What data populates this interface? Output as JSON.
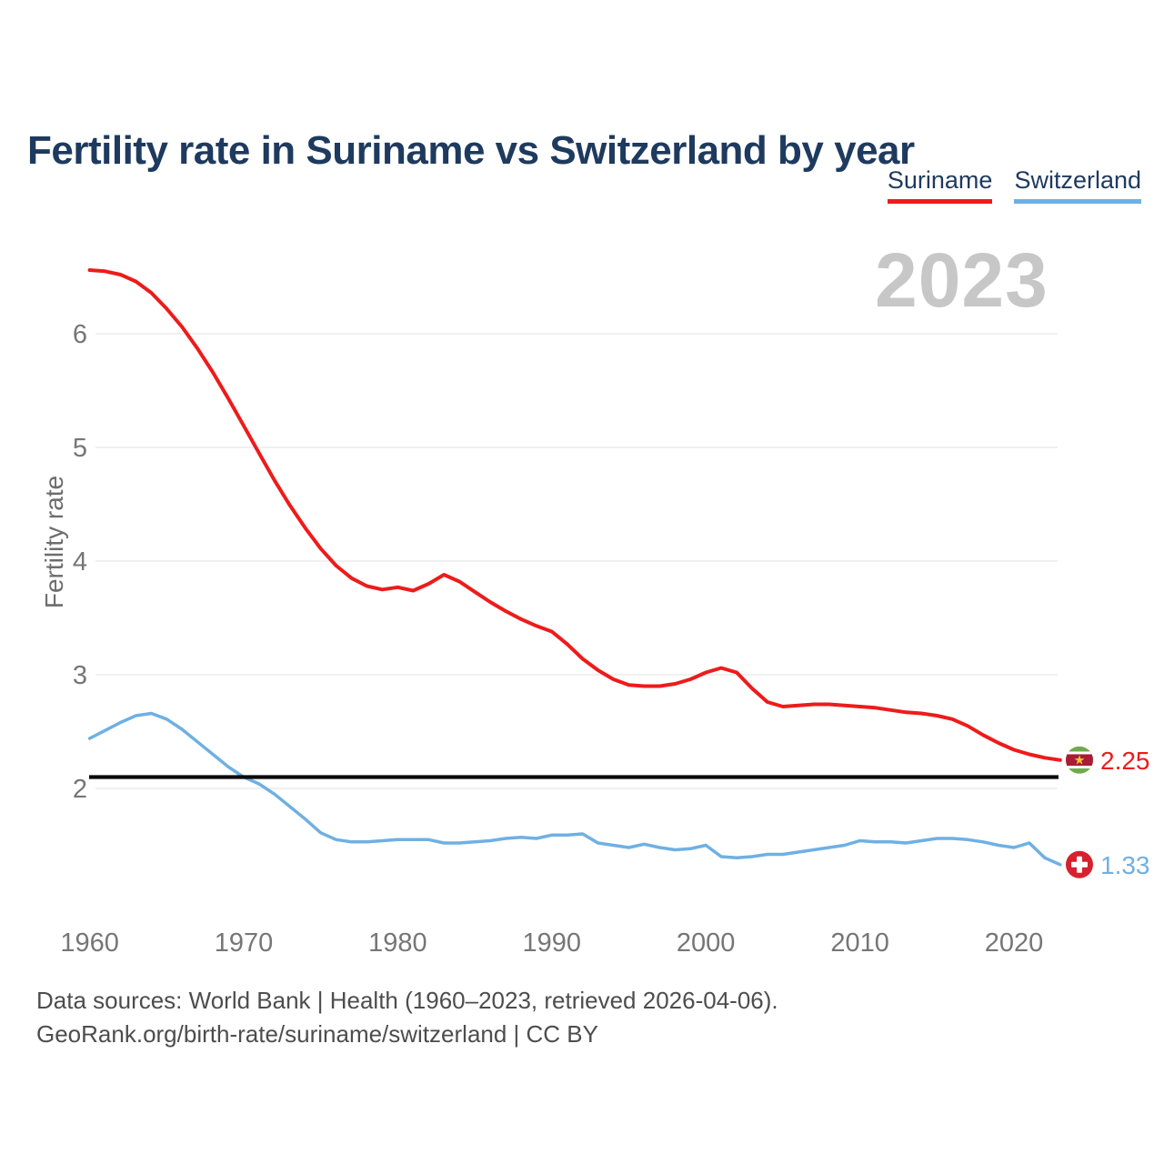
{
  "header": {
    "title": "Fertility rate in Suriname vs Switzerland by year"
  },
  "legend": {
    "items": [
      {
        "label": "Suriname",
        "color": "#ee1b1b"
      },
      {
        "label": "Switzerland",
        "color": "#6fb0e3"
      }
    ]
  },
  "watermark": {
    "year": "2023"
  },
  "footer": {
    "line1": "Data sources: World Bank | Health (1960–2023, retrieved 2026-04-06).",
    "line2": "GeoRank.org/birth-rate/suriname/switzerland | CC BY"
  },
  "chart_data": {
    "type": "line",
    "title": "Fertility rate in Suriname vs Switzerland by year",
    "xlabel": "",
    "ylabel": "Fertility rate",
    "x_range": [
      1960,
      2023
    ],
    "x_ticks": [
      1960,
      1970,
      1980,
      1990,
      2000,
      2010,
      2020
    ],
    "y_ticks": [
      2,
      3,
      4,
      5,
      6
    ],
    "ylim": [
      1.2,
      6.8
    ],
    "grid": "horizontal",
    "legend_position": "top-right",
    "current_year_label": "2023",
    "reference_line": {
      "value": 2.1,
      "color": "#0b0b0b"
    },
    "years": [
      1960,
      1961,
      1962,
      1963,
      1964,
      1965,
      1966,
      1967,
      1968,
      1969,
      1970,
      1971,
      1972,
      1973,
      1974,
      1975,
      1976,
      1977,
      1978,
      1979,
      1980,
      1981,
      1982,
      1983,
      1984,
      1985,
      1986,
      1987,
      1988,
      1989,
      1990,
      1991,
      1992,
      1993,
      1994,
      1995,
      1996,
      1997,
      1998,
      1999,
      2000,
      2001,
      2002,
      2003,
      2004,
      2005,
      2006,
      2007,
      2008,
      2009,
      2010,
      2011,
      2012,
      2013,
      2014,
      2015,
      2016,
      2017,
      2018,
      2019,
      2020,
      2021,
      2022,
      2023
    ],
    "series": [
      {
        "name": "Suriname",
        "color": "#ee1b1b",
        "flag": "suriname",
        "end_value_label": "2.25",
        "values": [
          6.56,
          6.55,
          6.52,
          6.46,
          6.36,
          6.22,
          6.06,
          5.87,
          5.66,
          5.43,
          5.19,
          4.95,
          4.71,
          4.49,
          4.29,
          4.11,
          3.96,
          3.85,
          3.78,
          3.75,
          3.77,
          3.74,
          3.8,
          3.88,
          3.82,
          3.73,
          3.64,
          3.56,
          3.49,
          3.43,
          3.38,
          3.27,
          3.14,
          3.04,
          2.96,
          2.91,
          2.9,
          2.9,
          2.92,
          2.96,
          3.02,
          3.06,
          3.02,
          2.88,
          2.76,
          2.72,
          2.73,
          2.74,
          2.74,
          2.73,
          2.72,
          2.71,
          2.69,
          2.67,
          2.66,
          2.64,
          2.61,
          2.55,
          2.47,
          2.4,
          2.34,
          2.3,
          2.27,
          2.25
        ]
      },
      {
        "name": "Switzerland",
        "color": "#6fb0e3",
        "flag": "switzerland",
        "end_value_label": "1.33",
        "values": [
          2.44,
          2.51,
          2.58,
          2.64,
          2.66,
          2.61,
          2.52,
          2.41,
          2.3,
          2.19,
          2.1,
          2.04,
          1.95,
          1.84,
          1.73,
          1.61,
          1.55,
          1.53,
          1.53,
          1.54,
          1.55,
          1.55,
          1.55,
          1.52,
          1.52,
          1.53,
          1.54,
          1.56,
          1.57,
          1.56,
          1.59,
          1.59,
          1.6,
          1.52,
          1.5,
          1.48,
          1.51,
          1.48,
          1.46,
          1.47,
          1.5,
          1.4,
          1.39,
          1.4,
          1.42,
          1.42,
          1.44,
          1.46,
          1.48,
          1.5,
          1.54,
          1.53,
          1.53,
          1.52,
          1.54,
          1.56,
          1.56,
          1.55,
          1.53,
          1.5,
          1.48,
          1.52,
          1.39,
          1.33
        ]
      }
    ],
    "flag_colors": {
      "suriname_green": "#6faa4e",
      "suriname_red": "#a81c36",
      "suriname_star": "#efc531",
      "switzerland_red": "#d6212e"
    }
  }
}
